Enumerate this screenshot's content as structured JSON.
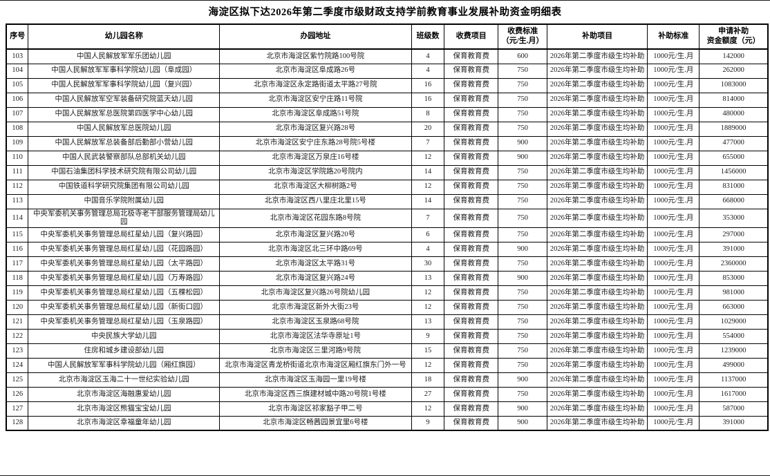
{
  "title": "海淀区拟下达2026年第二季度市级财政支持学前教育事业发展补助资金明细表",
  "table": {
    "headers": [
      "序号",
      "幼儿园名称",
      "办园地址",
      "班级数",
      "收费项目",
      "收费标准\n（元/生.月）",
      "补助项目",
      "补助标准",
      "申请补助\n资金额度（元）"
    ],
    "col_widths_pct": [
      2.9,
      25.1,
      25.2,
      4.3,
      7.1,
      6.4,
      13.2,
      6.8,
      9.0
    ],
    "rows": [
      [
        "103",
        "中国人民解放军军乐团幼儿园",
        "北京市海淀区紫竹院路100号院",
        "4",
        "保育教育费",
        "600",
        "2026年第二季度市级生均补助",
        "1000元/生.月",
        "142000"
      ],
      [
        "104",
        "中国人民解放军军事科学院幼儿园（阜成园）",
        "北京市海淀区阜成路26号",
        "4",
        "保育教育费",
        "750",
        "2026年第二季度市级生均补助",
        "1000元/生.月",
        "262000"
      ],
      [
        "105",
        "中国人民解放军军事科学院幼儿园（复兴园）",
        "北京市海淀区永定路街道太平路27号院",
        "16",
        "保育教育费",
        "750",
        "2026年第二季度市级生均补助",
        "1000元/生.月",
        "1083000"
      ],
      [
        "106",
        "中国人民解放军空军装备研究院蓝天幼儿园",
        "北京市海淀区安宁庄路11号院",
        "16",
        "保育教育费",
        "750",
        "2026年第二季度市级生均补助",
        "1000元/生.月",
        "814000"
      ],
      [
        "107",
        "中国人民解放军总医院第四医学中心幼儿园",
        "北京市海淀区阜成路51号院",
        "8",
        "保育教育费",
        "750",
        "2026年第二季度市级生均补助",
        "1000元/生.月",
        "480000"
      ],
      [
        "108",
        "中国人民解放军总医院幼儿园",
        "北京市海淀区复兴路28号",
        "20",
        "保育教育费",
        "750",
        "2026年第二季度市级生均补助",
        "1000元/生.月",
        "1889000"
      ],
      [
        "109",
        "中国人民解放军总装备部后勤部小营幼儿园",
        "北京市海淀区安宁庄东路28号院5号楼",
        "7",
        "保育教育费",
        "900",
        "2026年第二季度市级生均补助",
        "1000元/生.月",
        "477000"
      ],
      [
        "110",
        "中国人民武装警察部队总部机关幼儿园",
        "北京市海淀区万泉庄16号楼",
        "12",
        "保育教育费",
        "900",
        "2026年第二季度市级生均补助",
        "1000元/生.月",
        "655000"
      ],
      [
        "111",
        "中国石油集团科学技术研究院有限公司幼儿园",
        "北京市海淀区学院路20号院内",
        "14",
        "保育教育费",
        "750",
        "2026年第二季度市级生均补助",
        "1000元/生.月",
        "1456000"
      ],
      [
        "112",
        "中国铁道科学研究院集团有限公司幼儿园",
        "北京市海淀区大柳树路2号",
        "12",
        "保育教育费",
        "750",
        "2026年第二季度市级生均补助",
        "1000元/生.月",
        "831000"
      ],
      [
        "113",
        "中国音乐学院附属幼儿园",
        "北京市海淀区西八里庄北里15号",
        "14",
        "保育教育费",
        "750",
        "2026年第二季度市级生均补助",
        "1000元/生.月",
        "668000"
      ],
      [
        "114",
        "中央军委机关事务管理总局北极寺老干部服务管理局幼儿园",
        "北京市海淀区花园东路8号院",
        "7",
        "保育教育费",
        "750",
        "2026年第二季度市级生均补助",
        "1000元/生.月",
        "353000"
      ],
      [
        "115",
        "中央军委机关事务管理总局红星幼儿园（复兴路园）",
        "北京市海淀区复兴路20号",
        "6",
        "保育教育费",
        "750",
        "2026年第二季度市级生均补助",
        "1000元/生.月",
        "297000"
      ],
      [
        "116",
        "中央军委机关事务管理总局红星幼儿园（花园路园）",
        "北京市海淀区北三环中路69号",
        "4",
        "保育教育费",
        "900",
        "2026年第二季度市级生均补助",
        "1000元/生.月",
        "391000"
      ],
      [
        "117",
        "中央军委机关事务管理总局红星幼儿园（太平路园）",
        "北京市海淀区太平路31号",
        "30",
        "保育教育费",
        "750",
        "2026年第二季度市级生均补助",
        "1000元/生.月",
        "2360000"
      ],
      [
        "118",
        "中央军委机关事务管理总局红星幼儿园（万寿路园）",
        "北京市海淀区复兴路24号",
        "13",
        "保育教育费",
        "900",
        "2026年第二季度市级生均补助",
        "1000元/生.月",
        "853000"
      ],
      [
        "119",
        "中央军委机关事务管理总局红星幼儿园（五棵松园）",
        "北京市海淀区复兴路26号院幼儿园",
        "12",
        "保育教育费",
        "750",
        "2026年第二季度市级生均补助",
        "1000元/生.月",
        "981000"
      ],
      [
        "120",
        "中央军委机关事务管理总局红星幼儿园（新街口园）",
        "北京市海淀区新外大街23号",
        "12",
        "保育教育费",
        "750",
        "2026年第二季度市级生均补助",
        "1000元/生.月",
        "663000"
      ],
      [
        "121",
        "中央军委机关事务管理总局红星幼儿园（玉泉路园）",
        "北京市海淀区玉泉路68号院",
        "13",
        "保育教育费",
        "750",
        "2026年第二季度市级生均补助",
        "1000元/生.月",
        "1029000"
      ],
      [
        "122",
        "中央民族大学幼儿园",
        "北京市海淀区法华寺原址1号",
        "9",
        "保育教育费",
        "750",
        "2026年第二季度市级生均补助",
        "1000元/生.月",
        "554000"
      ],
      [
        "123",
        "住房和城乡建设部幼儿园",
        "北京市海淀区三里河路9号院",
        "15",
        "保育教育费",
        "750",
        "2026年第二季度市级生均补助",
        "1000元/生.月",
        "1239000"
      ],
      [
        "124",
        "中国人民解放军军事科学院幼儿园（厢红旗园）",
        "北京市海淀区青龙桥街道北京市海淀区厢红旗东门外一号",
        "12",
        "保育教育费",
        "750",
        "2026年第二季度市级生均补助",
        "1000元/生.月",
        "499000"
      ],
      [
        "125",
        "北京市海淀区玉海二十一世纪实验幼儿园",
        "北京市海淀区玉海园一里19号楼",
        "18",
        "保育教育费",
        "900",
        "2026年第二季度市级生均补助",
        "1000元/生.月",
        "1137000"
      ],
      [
        "126",
        "北京市海淀区海融惠爱幼儿园",
        "北京市海淀区西三旗建材城中路20号院1号楼",
        "27",
        "保育教育费",
        "750",
        "2026年第二季度市级生均补助",
        "1000元/生.月",
        "1617000"
      ],
      [
        "127",
        "北京市海淀区熊猫宝宝幼儿园",
        "北京市海淀区祁家豁子甲二号",
        "12",
        "保育教育费",
        "900",
        "2026年第二季度市级生均补助",
        "1000元/生.月",
        "587000"
      ],
      [
        "128",
        "北京市海淀区幸福童年幼儿园",
        "北京市海淀区畅茜园景宜里6号楼",
        "9",
        "保育教育费",
        "900",
        "2026年第二季度市级生均补助",
        "1000元/生.月",
        "391000"
      ]
    ]
  }
}
